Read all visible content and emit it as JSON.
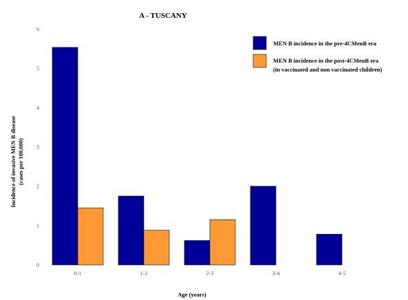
{
  "chart_data": {
    "type": "bar",
    "title": "A - TUSCANY",
    "xlabel": "Age (years)",
    "ylabel_lines": [
      "Incidence  of invasive MEN B disease",
      "(cases per 100,000)"
    ],
    "categories": [
      "0-1",
      "1-2",
      "2-3",
      "3-4",
      "4-5"
    ],
    "ylim": [
      0,
      6
    ],
    "yticks": [
      "0",
      "1",
      "2",
      "3",
      "4",
      "5",
      "6"
    ],
    "grid": false,
    "legend_position": "top-right",
    "series": [
      {
        "name": "MEN B incidence in the pre-4CMenB era",
        "color": "#000099",
        "values": [
          5.53,
          1.75,
          0.62,
          2.0,
          0.78
        ]
      },
      {
        "name": "MEN B incidence in the post-4CMenB era",
        "name_line2": "(in vaccinated and non vaccinated children)",
        "color": "#ff9933",
        "values": [
          1.45,
          0.88,
          1.15,
          null,
          null
        ]
      }
    ]
  }
}
